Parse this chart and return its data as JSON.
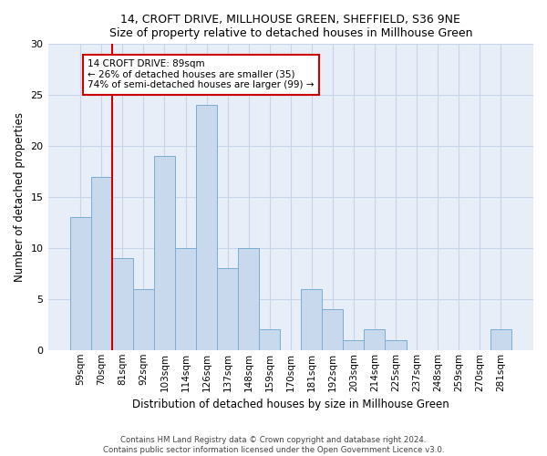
{
  "title1": "14, CROFT DRIVE, MILLHOUSE GREEN, SHEFFIELD, S36 9NE",
  "title2": "Size of property relative to detached houses in Millhouse Green",
  "xlabel": "Distribution of detached houses by size in Millhouse Green",
  "ylabel": "Number of detached properties",
  "categories": [
    "59sqm",
    "70sqm",
    "81sqm",
    "92sqm",
    "103sqm",
    "114sqm",
    "126sqm",
    "137sqm",
    "148sqm",
    "159sqm",
    "170sqm",
    "181sqm",
    "192sqm",
    "203sqm",
    "214sqm",
    "225sqm",
    "237sqm",
    "248sqm",
    "259sqm",
    "270sqm",
    "281sqm"
  ],
  "values": [
    13,
    17,
    9,
    6,
    19,
    10,
    24,
    8,
    10,
    2,
    0,
    6,
    4,
    1,
    2,
    1,
    0,
    0,
    0,
    0,
    2
  ],
  "bar_color": "#c8d9ed",
  "bar_edge_color": "#7aadd4",
  "vline_x_idx": 2,
  "vline_color": "#cc0000",
  "annotation_text": "14 CROFT DRIVE: 89sqm\n← 26% of detached houses are smaller (35)\n74% of semi-detached houses are larger (99) →",
  "annotation_box_color": "#cc0000",
  "ylim": [
    0,
    30
  ],
  "yticks": [
    0,
    5,
    10,
    15,
    20,
    25,
    30
  ],
  "grid_color": "#c8d4e8",
  "bg_color": "#e8eef8",
  "title_fontsize": 9,
  "footer": "Contains HM Land Registry data © Crown copyright and database right 2024.\nContains public sector information licensed under the Open Government Licence v3.0."
}
